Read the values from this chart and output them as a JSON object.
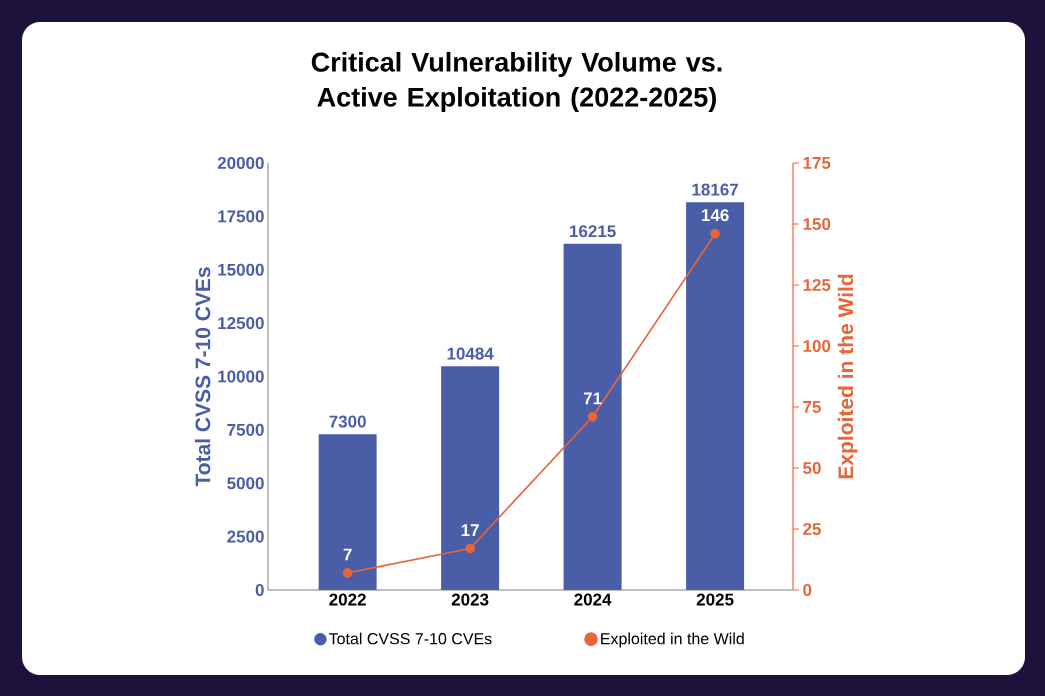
{
  "chart_data": {
    "type": "bar",
    "title": "Critical Vulnerability Volume vs. Active Exploitation (2022-2025)",
    "categories": [
      "2022",
      "2023",
      "2024",
      "2025"
    ],
    "series": [
      {
        "name": "Total CVSS 7-10 CVEs",
        "color": "#4a5ea8",
        "values": [
          7300,
          10484,
          16215,
          18167
        ]
      },
      {
        "name": "Exploited in the Wild",
        "type": "line",
        "axis": "y2",
        "color": "#e8643a",
        "values": [
          7,
          17,
          71,
          146
        ]
      }
    ],
    "ylabel": "Total CVSS 7-10 CVEs",
    "y2label": "Exploited in the Wild",
    "ylim": [
      0,
      20000
    ],
    "yticks": [
      0,
      2500,
      5000,
      7500,
      10000,
      12500,
      15000,
      17500,
      20000
    ],
    "y2lim": [
      0,
      175
    ],
    "y2ticks": [
      0,
      25,
      50,
      75,
      100,
      125,
      150,
      175
    ],
    "data_labels": true,
    "grid": false,
    "legend": "bottom",
    "marker": "circle"
  }
}
